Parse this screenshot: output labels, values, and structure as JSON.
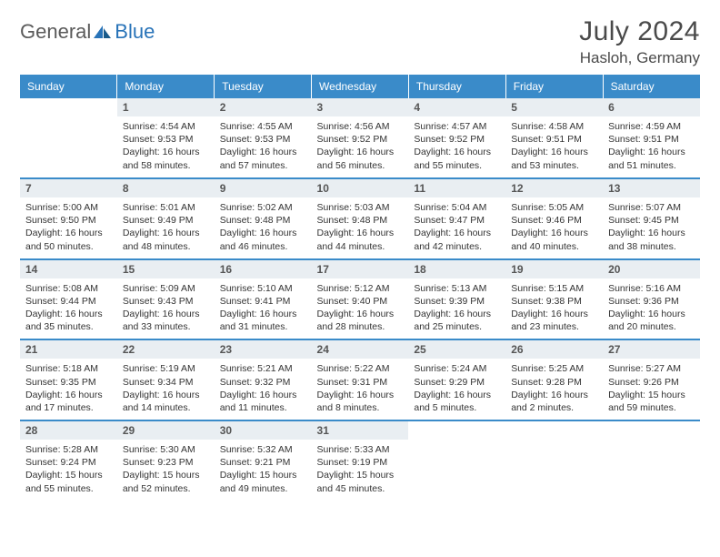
{
  "brand": {
    "part1": "General",
    "part2": "Blue"
  },
  "title": "July 2024",
  "location": "Hasloh, Germany",
  "colors": {
    "header_bg": "#3a8bc9",
    "header_text": "#ffffff",
    "daynum_bg": "#e9eef2",
    "border": "#3a8bc9",
    "logo_gray": "#5a5a5a",
    "logo_blue": "#2873b8"
  },
  "weekdays": [
    "Sunday",
    "Monday",
    "Tuesday",
    "Wednesday",
    "Thursday",
    "Friday",
    "Saturday"
  ],
  "weeks": [
    [
      {
        "empty": true
      },
      {
        "n": "1",
        "sunrise": "4:54 AM",
        "sunset": "9:53 PM",
        "dl1": "Daylight: 16 hours",
        "dl2": "and 58 minutes."
      },
      {
        "n": "2",
        "sunrise": "4:55 AM",
        "sunset": "9:53 PM",
        "dl1": "Daylight: 16 hours",
        "dl2": "and 57 minutes."
      },
      {
        "n": "3",
        "sunrise": "4:56 AM",
        "sunset": "9:52 PM",
        "dl1": "Daylight: 16 hours",
        "dl2": "and 56 minutes."
      },
      {
        "n": "4",
        "sunrise": "4:57 AM",
        "sunset": "9:52 PM",
        "dl1": "Daylight: 16 hours",
        "dl2": "and 55 minutes."
      },
      {
        "n": "5",
        "sunrise": "4:58 AM",
        "sunset": "9:51 PM",
        "dl1": "Daylight: 16 hours",
        "dl2": "and 53 minutes."
      },
      {
        "n": "6",
        "sunrise": "4:59 AM",
        "sunset": "9:51 PM",
        "dl1": "Daylight: 16 hours",
        "dl2": "and 51 minutes."
      }
    ],
    [
      {
        "n": "7",
        "sunrise": "5:00 AM",
        "sunset": "9:50 PM",
        "dl1": "Daylight: 16 hours",
        "dl2": "and 50 minutes."
      },
      {
        "n": "8",
        "sunrise": "5:01 AM",
        "sunset": "9:49 PM",
        "dl1": "Daylight: 16 hours",
        "dl2": "and 48 minutes."
      },
      {
        "n": "9",
        "sunrise": "5:02 AM",
        "sunset": "9:48 PM",
        "dl1": "Daylight: 16 hours",
        "dl2": "and 46 minutes."
      },
      {
        "n": "10",
        "sunrise": "5:03 AM",
        "sunset": "9:48 PM",
        "dl1": "Daylight: 16 hours",
        "dl2": "and 44 minutes."
      },
      {
        "n": "11",
        "sunrise": "5:04 AM",
        "sunset": "9:47 PM",
        "dl1": "Daylight: 16 hours",
        "dl2": "and 42 minutes."
      },
      {
        "n": "12",
        "sunrise": "5:05 AM",
        "sunset": "9:46 PM",
        "dl1": "Daylight: 16 hours",
        "dl2": "and 40 minutes."
      },
      {
        "n": "13",
        "sunrise": "5:07 AM",
        "sunset": "9:45 PM",
        "dl1": "Daylight: 16 hours",
        "dl2": "and 38 minutes."
      }
    ],
    [
      {
        "n": "14",
        "sunrise": "5:08 AM",
        "sunset": "9:44 PM",
        "dl1": "Daylight: 16 hours",
        "dl2": "and 35 minutes."
      },
      {
        "n": "15",
        "sunrise": "5:09 AM",
        "sunset": "9:43 PM",
        "dl1": "Daylight: 16 hours",
        "dl2": "and 33 minutes."
      },
      {
        "n": "16",
        "sunrise": "5:10 AM",
        "sunset": "9:41 PM",
        "dl1": "Daylight: 16 hours",
        "dl2": "and 31 minutes."
      },
      {
        "n": "17",
        "sunrise": "5:12 AM",
        "sunset": "9:40 PM",
        "dl1": "Daylight: 16 hours",
        "dl2": "and 28 minutes."
      },
      {
        "n": "18",
        "sunrise": "5:13 AM",
        "sunset": "9:39 PM",
        "dl1": "Daylight: 16 hours",
        "dl2": "and 25 minutes."
      },
      {
        "n": "19",
        "sunrise": "5:15 AM",
        "sunset": "9:38 PM",
        "dl1": "Daylight: 16 hours",
        "dl2": "and 23 minutes."
      },
      {
        "n": "20",
        "sunrise": "5:16 AM",
        "sunset": "9:36 PM",
        "dl1": "Daylight: 16 hours",
        "dl2": "and 20 minutes."
      }
    ],
    [
      {
        "n": "21",
        "sunrise": "5:18 AM",
        "sunset": "9:35 PM",
        "dl1": "Daylight: 16 hours",
        "dl2": "and 17 minutes."
      },
      {
        "n": "22",
        "sunrise": "5:19 AM",
        "sunset": "9:34 PM",
        "dl1": "Daylight: 16 hours",
        "dl2": "and 14 minutes."
      },
      {
        "n": "23",
        "sunrise": "5:21 AM",
        "sunset": "9:32 PM",
        "dl1": "Daylight: 16 hours",
        "dl2": "and 11 minutes."
      },
      {
        "n": "24",
        "sunrise": "5:22 AM",
        "sunset": "9:31 PM",
        "dl1": "Daylight: 16 hours",
        "dl2": "and 8 minutes."
      },
      {
        "n": "25",
        "sunrise": "5:24 AM",
        "sunset": "9:29 PM",
        "dl1": "Daylight: 16 hours",
        "dl2": "and 5 minutes."
      },
      {
        "n": "26",
        "sunrise": "5:25 AM",
        "sunset": "9:28 PM",
        "dl1": "Daylight: 16 hours",
        "dl2": "and 2 minutes."
      },
      {
        "n": "27",
        "sunrise": "5:27 AM",
        "sunset": "9:26 PM",
        "dl1": "Daylight: 15 hours",
        "dl2": "and 59 minutes."
      }
    ],
    [
      {
        "n": "28",
        "sunrise": "5:28 AM",
        "sunset": "9:24 PM",
        "dl1": "Daylight: 15 hours",
        "dl2": "and 55 minutes."
      },
      {
        "n": "29",
        "sunrise": "5:30 AM",
        "sunset": "9:23 PM",
        "dl1": "Daylight: 15 hours",
        "dl2": "and 52 minutes."
      },
      {
        "n": "30",
        "sunrise": "5:32 AM",
        "sunset": "9:21 PM",
        "dl1": "Daylight: 15 hours",
        "dl2": "and 49 minutes."
      },
      {
        "n": "31",
        "sunrise": "5:33 AM",
        "sunset": "9:19 PM",
        "dl1": "Daylight: 15 hours",
        "dl2": "and 45 minutes."
      },
      {
        "empty": true
      },
      {
        "empty": true
      },
      {
        "empty": true
      }
    ]
  ]
}
